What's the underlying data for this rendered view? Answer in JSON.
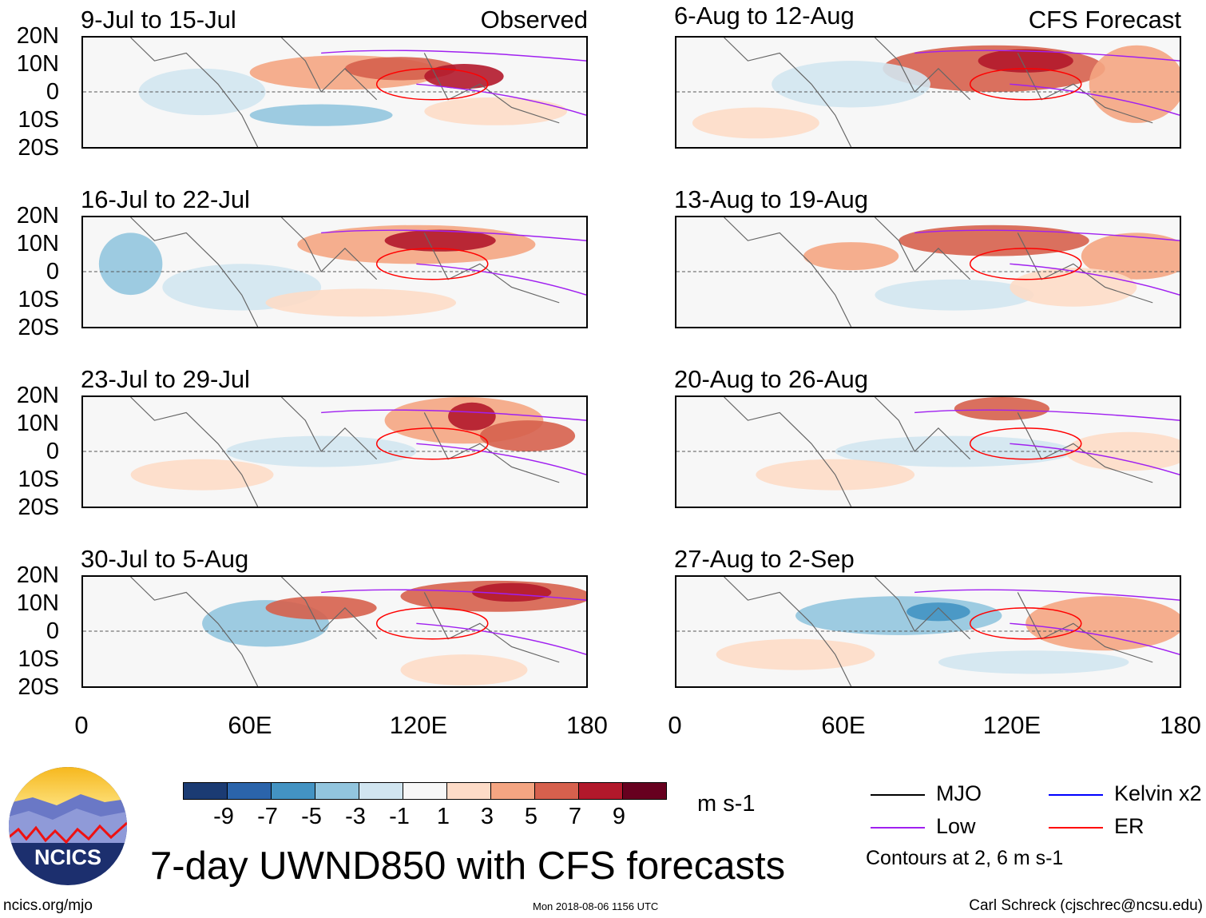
{
  "panels": {
    "left": [
      {
        "title": "9-Jul to 15-Jul",
        "tag": "Observed"
      },
      {
        "title": "16-Jul to 22-Jul"
      },
      {
        "title": "23-Jul to 29-Jul"
      },
      {
        "title": "30-Jul to 5-Aug"
      }
    ],
    "right": [
      {
        "title": "6-Aug to 12-Aug",
        "tag": "CFS Forecast"
      },
      {
        "title": "13-Aug to 19-Aug"
      },
      {
        "title": "20-Aug to 26-Aug"
      },
      {
        "title": "27-Aug to 2-Sep"
      }
    ]
  },
  "lat_labels": [
    "20N",
    "10N",
    "0",
    "10S",
    "20S"
  ],
  "lon_labels": [
    "0",
    "60E",
    "120E",
    "180"
  ],
  "colorbar": {
    "colors": [
      "#1b3b73",
      "#2b64ab",
      "#4393c3",
      "#92c5de",
      "#d1e5f0",
      "#f7f7f7",
      "#fddbc7",
      "#f4a582",
      "#d6604d",
      "#b2182b",
      "#67001f"
    ],
    "labels": [
      "-9",
      "-7",
      "-5",
      "-3",
      "-1",
      "1",
      "3",
      "5",
      "7",
      "9"
    ],
    "units": "m s-1"
  },
  "legend": {
    "items": [
      {
        "label": "MJO",
        "color": "#000000"
      },
      {
        "label": "Low",
        "color": "#a020f0"
      },
      {
        "label": "Kelvin x2",
        "color": "#0000ff"
      },
      {
        "label": "ER",
        "color": "#ff0000"
      }
    ],
    "note": "Contours at 2, 6 m s-1"
  },
  "title": "7-day UWND850 with CFS forecasts",
  "logo_text": "NCICS",
  "footer": {
    "url": "ncics.org/mjo",
    "timestamp": "Mon 2018-08-06 1156 UTC",
    "credit": "Carl Schreck (cjschrec@ncsu.edu)"
  }
}
